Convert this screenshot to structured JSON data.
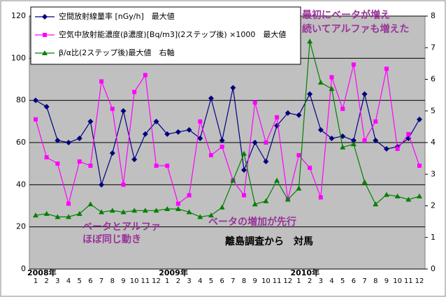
{
  "chart_data": {
    "type": "line",
    "categories": [
      "1",
      "2",
      "3",
      "4",
      "5",
      "6",
      "7",
      "8",
      "9",
      "10",
      "11",
      "12",
      "1",
      "2",
      "3",
      "4",
      "5",
      "6",
      "7",
      "8",
      "9",
      "10",
      "11",
      "12",
      "1",
      "2",
      "3",
      "4",
      "5",
      "6",
      "7",
      "8",
      "9",
      "10",
      "11",
      "12"
    ],
    "years": [
      "2008年",
      "2009年",
      "2010年"
    ],
    "series": [
      {
        "name": "空間放射線量率 [nGy/h]　最大値",
        "color": "#000080",
        "marker": "diamond",
        "values": [
          80,
          77,
          61,
          60,
          62,
          70,
          40,
          55,
          75,
          52,
          64,
          70,
          64,
          65,
          66,
          62,
          81,
          61,
          86,
          47,
          60,
          51,
          68,
          74,
          73,
          83,
          66,
          62,
          63,
          61,
          83,
          61,
          57,
          58,
          62,
          71
        ]
      },
      {
        "name": "空気中放射能濃度(β濃度)[Bq/m3](2ステップ後) ×1000　最大値",
        "color": "#ff00ff",
        "marker": "square",
        "values": [
          71,
          53,
          50,
          31,
          51,
          49,
          89,
          76,
          40,
          84,
          92,
          49,
          49,
          31,
          35,
          70,
          54,
          58,
          42,
          35,
          79,
          60,
          72,
          33,
          54,
          48,
          34,
          91,
          76,
          97,
          61,
          70,
          95,
          57,
          64,
          49
        ]
      },
      {
        "name": "β/α比(2ステップ後)最大値　右軸",
        "color": "#008000",
        "marker": "triangle",
        "axis": "y2",
        "values": [
          1.7,
          1.75,
          1.65,
          1.65,
          1.75,
          2.05,
          1.8,
          1.85,
          1.8,
          1.85,
          1.85,
          1.85,
          1.9,
          1.9,
          1.8,
          1.65,
          1.7,
          1.95,
          2.8,
          3.65,
          2.05,
          2.15,
          2.8,
          2.2,
          2.55,
          7.2,
          5.9,
          5.7,
          3.85,
          3.95,
          2.75,
          2.05,
          2.35,
          2.3,
          2.2,
          2.3
        ]
      }
    ],
    "ylim": [
      0,
      120
    ],
    "yticks": [
      0,
      20,
      40,
      60,
      80,
      100,
      120
    ],
    "y2lim": [
      0,
      8
    ],
    "y2ticks": [
      0,
      1,
      2,
      3,
      4,
      5,
      6,
      7,
      8
    ],
    "grid": true,
    "annotations": [
      "最初にベータが増え",
      "続いてアルファも増えた",
      "ベータとアルファ",
      "ほぼ同じ動き",
      "ベータの増加が先行",
      "離島調査から　対馬"
    ]
  }
}
